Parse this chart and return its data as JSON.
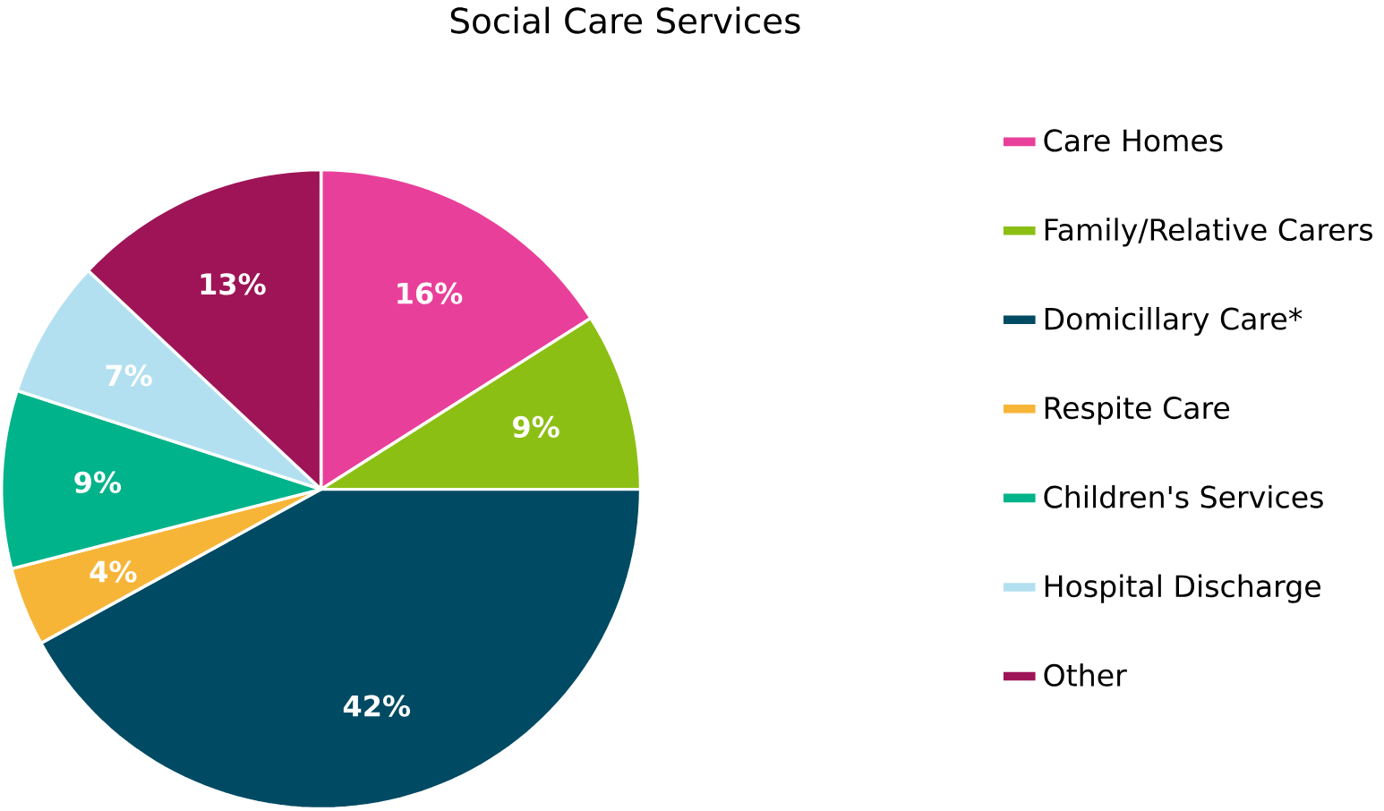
{
  "chart_data": {
    "type": "pie",
    "title": "Social Care Services",
    "categories": [
      "Care Homes",
      "Family/Relative Carers",
      "Domicillary Care*",
      "Respite Care",
      "Children's Services",
      "Hospital Discharge",
      "Other"
    ],
    "values": [
      16,
      9,
      42,
      4,
      9,
      7,
      13
    ],
    "value_labels": [
      "16%",
      "9%",
      "42%",
      "4%",
      "9%",
      "7%",
      "13%"
    ],
    "colors": [
      "#e8409a",
      "#8cbf14",
      "#004a63",
      "#f7b538",
      "#00b38a",
      "#b3e0f0",
      "#9e1457"
    ],
    "legend": "right"
  }
}
